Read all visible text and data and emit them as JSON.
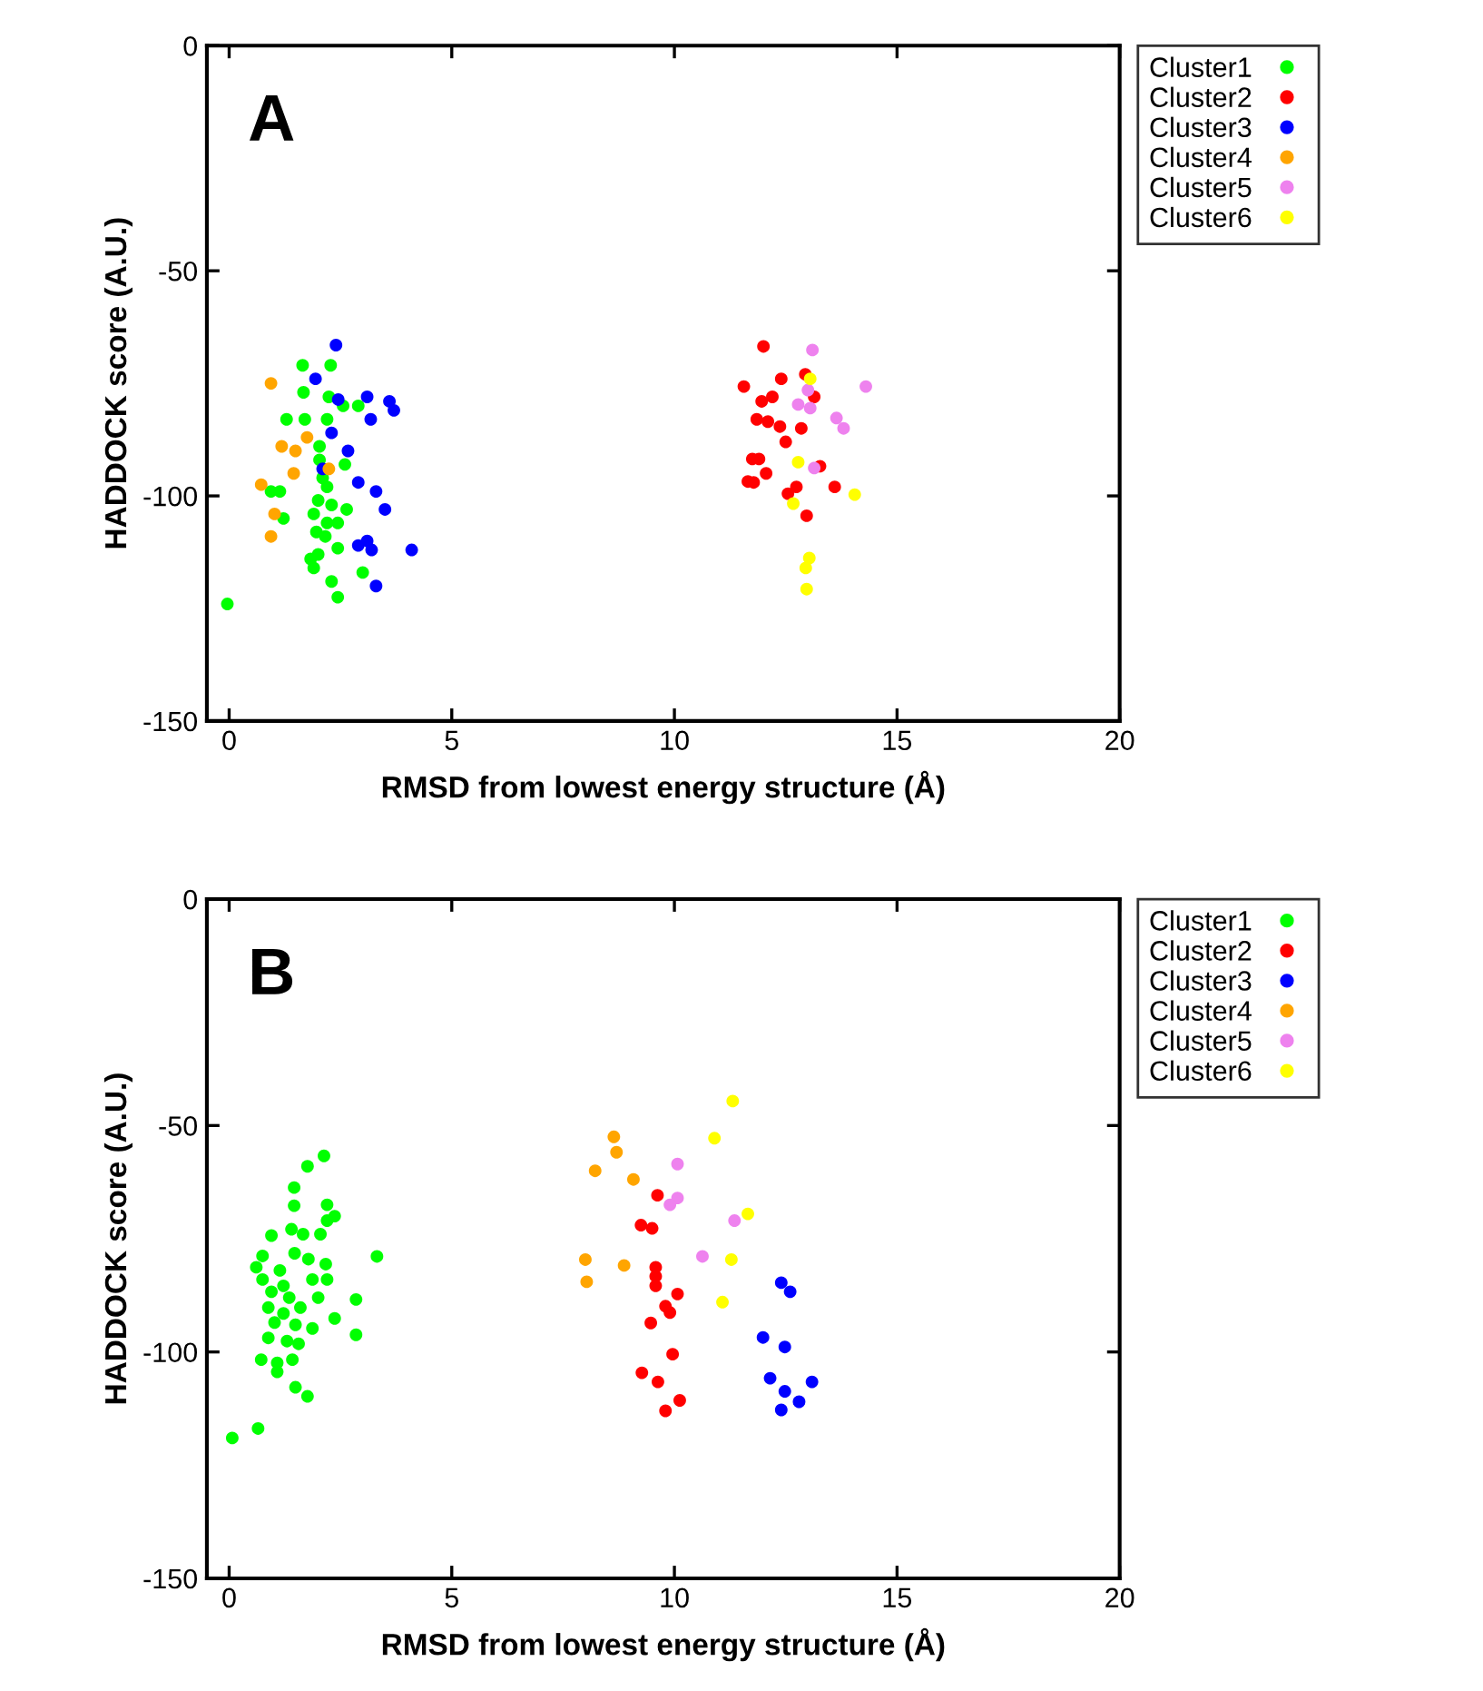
{
  "chart_data": [
    {
      "type": "scatter",
      "annotations": [
        "A"
      ],
      "xlabel": "RMSD from lowest energy structure (Å)",
      "ylabel": "HADDOCK score (A.U.)",
      "xlim": [
        -0.5,
        20
      ],
      "ylim": [
        -150,
        0
      ],
      "xticks": [
        0,
        5,
        10,
        15,
        20
      ],
      "yticks": [
        0,
        -50,
        -100,
        -150
      ],
      "legend": "top right",
      "marker": "circle",
      "grid": false,
      "series": [
        {
          "name": "Cluster1",
          "color": "#00ff00",
          "x": [
            1.65,
            2.28,
            1.67,
            2.24,
            2.56,
            2.9,
            2.2,
            1.29,
            1.7,
            2.03,
            2.03,
            2.6,
            2.1,
            2.2,
            0.94,
            1.14,
            2.0,
            2.3,
            2.64,
            1.9,
            1.22,
            2.2,
            2.44,
            1.96,
            2.16,
            2.44,
            1.83,
            2.0,
            1.9,
            3.0,
            2.3,
            2.44,
            -0.04
          ],
          "values": [
            -71,
            -71,
            -77,
            -78,
            -80,
            -80,
            -83,
            -83,
            -83,
            -89,
            -92,
            -93,
            -96,
            -98,
            -99,
            -99,
            -101,
            -102,
            -103,
            -104,
            -105,
            -106,
            -106,
            -108,
            -109,
            -111.6,
            -114,
            -113,
            -116,
            -117,
            -119,
            -122.5,
            -124
          ]
        },
        {
          "name": "Cluster2",
          "color": "#ff0000",
          "x": [
            12.0,
            11.56,
            12.4,
            12.94,
            13.14,
            11.96,
            12.2,
            11.85,
            12.1,
            12.37,
            12.85,
            12.5,
            11.75,
            11.9,
            12.06,
            11.65,
            11.78,
            13.27,
            13.6,
            12.74,
            12.55,
            12.97
          ],
          "values": [
            -66.8,
            -75.7,
            -74,
            -73,
            -78,
            -79,
            -78,
            -83,
            -83.5,
            -84.6,
            -85,
            -88,
            -91.8,
            -91.8,
            -95,
            -96.8,
            -97,
            -93.4,
            -98,
            -98,
            -99.5,
            -104.4
          ]
        },
        {
          "name": "Cluster3",
          "color": "#0000ff",
          "x": [
            2.4,
            1.94,
            2.45,
            3.1,
            3.6,
            3.7,
            3.18,
            2.3,
            2.67,
            2.1,
            2.9,
            3.3,
            3.5,
            2.9,
            3.1,
            3.2,
            4.1,
            3.3
          ],
          "values": [
            -66.5,
            -74,
            -78.6,
            -78,
            -79,
            -81,
            -83,
            -86,
            -90,
            -94,
            -97,
            -99,
            -103,
            -111,
            -110,
            -112,
            -112,
            -120
          ]
        },
        {
          "name": "Cluster4",
          "color": "#ffa500",
          "x": [
            0.94,
            1.75,
            1.18,
            1.49,
            1.45,
            2.24,
            0.72,
            1.02,
            0.94
          ],
          "values": [
            -75,
            -87,
            -89,
            -90,
            -95,
            -94,
            -97.5,
            -104,
            -109
          ]
        },
        {
          "name": "Cluster5",
          "color": "#ee82ee",
          "x": [
            13.1,
            13.0,
            14.3,
            12.78,
            13.05,
            13.64,
            13.8,
            13.14
          ],
          "values": [
            -67.6,
            -76.5,
            -75.7,
            -79.7,
            -80.5,
            -82.7,
            -85,
            -93.8
          ]
        },
        {
          "name": "Cluster6",
          "color": "#ffff00",
          "x": [
            13.05,
            12.78,
            12.67,
            14.05,
            13.03,
            12.95,
            12.97
          ],
          "values": [
            -74,
            -92.5,
            -101.7,
            -99.7,
            -113.8,
            -116,
            -120.7
          ]
        }
      ]
    },
    {
      "type": "scatter",
      "annotations": [
        "B"
      ],
      "xlabel": "RMSD from lowest energy structure (Å)",
      "ylabel": "HADDOCK score (A.U.)",
      "xlim": [
        -0.5,
        20
      ],
      "ylim": [
        -150,
        0
      ],
      "xticks": [
        0,
        5,
        10,
        15,
        20
      ],
      "yticks": [
        0,
        -50,
        -100,
        -150
      ],
      "legend": "top right",
      "marker": "circle",
      "grid": false,
      "series": [
        {
          "name": "Cluster1",
          "color": "#00ff00",
          "x": [
            2.13,
            1.76,
            1.46,
            1.46,
            2.2,
            2.37,
            2.2,
            1.4,
            1.66,
            2.05,
            0.95,
            3.32,
            0.75,
            1.47,
            1.78,
            2.17,
            0.61,
            1.14,
            1.87,
            2.2,
            0.75,
            1.22,
            0.95,
            1.35,
            2.0,
            2.85,
            1.6,
            0.88,
            1.22,
            2.37,
            1.02,
            1.49,
            1.87,
            0.88,
            1.3,
            2.85,
            1.56,
            0.72,
            1.08,
            1.42,
            1.08,
            1.49,
            1.76,
            0.65,
            0.07
          ],
          "values": [
            -56.7,
            -59,
            -63.7,
            -67.7,
            -67.5,
            -70,
            -71,
            -72.9,
            -74,
            -74,
            -74.3,
            -78.9,
            -78.8,
            -78.2,
            -79.5,
            -80.6,
            -81.3,
            -82,
            -84,
            -84,
            -84,
            -85.4,
            -86.7,
            -88,
            -88,
            -88.4,
            -90.2,
            -90.2,
            -91.5,
            -92.6,
            -93.5,
            -94,
            -94.8,
            -96.9,
            -97.6,
            -96.2,
            -98.2,
            -101.7,
            -102.4,
            -101.7,
            -104.4,
            -107.8,
            -109.8,
            -116.9,
            -119
          ]
        },
        {
          "name": "Cluster2",
          "color": "#ff0000",
          "x": [
            9.62,
            9.25,
            9.5,
            9.58,
            9.58,
            9.58,
            10.07,
            9.8,
            9.9,
            9.47,
            9.27,
            9.96,
            9.8,
            10.12,
            9.63
          ],
          "values": [
            -65.4,
            -72,
            -72.7,
            -81.3,
            -83.3,
            -85.4,
            -87.2,
            -89.9,
            -91.3,
            -93.6,
            -104.6,
            -100.5,
            -113,
            -110.7,
            -106.6
          ]
        },
        {
          "name": "Cluster3",
          "color": "#0000ff",
          "x": [
            12.4,
            12.6,
            11.99,
            12.48,
            12.15,
            12.48,
            12.4,
            12.8,
            13.09
          ],
          "values": [
            -84.7,
            -86.7,
            -96.8,
            -98.9,
            -105.8,
            -108.7,
            -112.8,
            -111,
            -106.6
          ]
        },
        {
          "name": "Cluster4",
          "color": "#ffa500",
          "x": [
            8.64,
            8.7,
            8.22,
            9.08,
            8.0,
            8.87,
            8.03
          ],
          "values": [
            -52.5,
            -55.9,
            -60,
            -61.9,
            -79.6,
            -80.9,
            -84.5
          ]
        },
        {
          "name": "Cluster5",
          "color": "#ee82ee",
          "x": [
            10.07,
            10.07,
            9.9,
            11.35,
            10.63
          ],
          "values": [
            -58.5,
            -66,
            -67.5,
            -71,
            -78.9
          ]
        },
        {
          "name": "Cluster6",
          "color": "#ffff00",
          "x": [
            11.31,
            10.9,
            11.65,
            11.28,
            11.08
          ],
          "values": [
            -44.6,
            -52.8,
            -69.5,
            -79.6,
            -89
          ]
        }
      ]
    }
  ]
}
